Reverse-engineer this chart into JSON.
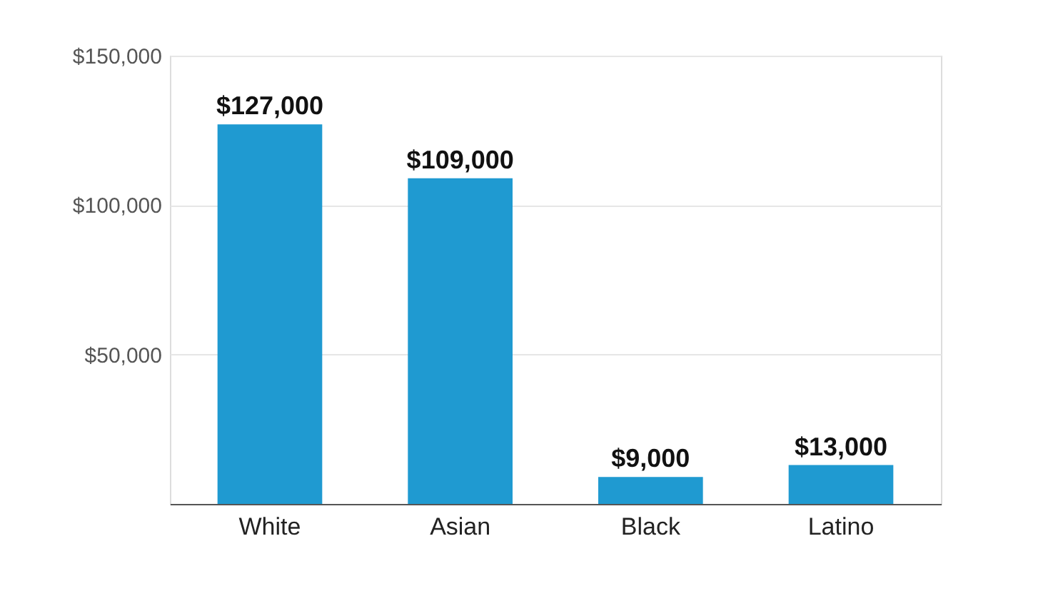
{
  "chart_data": {
    "type": "bar",
    "categories": [
      "White",
      "Asian",
      "Black",
      "Latino"
    ],
    "values": [
      127000,
      109000,
      9000,
      13000
    ],
    "color": "#1f9ad1",
    "value_labels": [
      "$127,000",
      "$109,000",
      "$9,000",
      "$13,000"
    ],
    "ylim": [
      0,
      150000
    ],
    "yticks": [
      {
        "value": 0,
        "label": null
      },
      {
        "value": 50000,
        "label": "$50,000"
      },
      {
        "value": 100000,
        "label": "$100,000"
      },
      {
        "value": 150000,
        "label": "$150,000"
      }
    ],
    "grid": "y"
  }
}
